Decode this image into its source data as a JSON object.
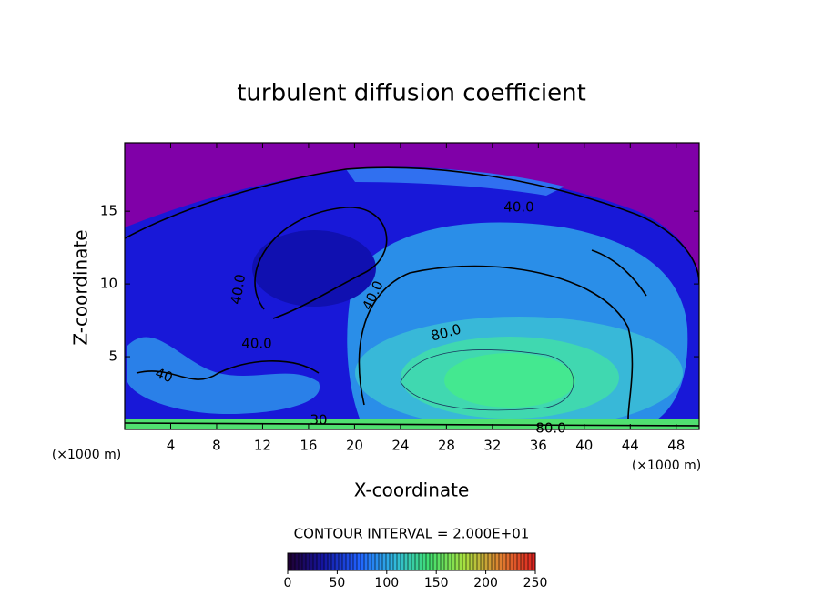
{
  "chart_data": {
    "type": "contour",
    "title": "turbulent diffusion coefficient",
    "x_label": "X-coordinate",
    "y_label": "Z-coordinate",
    "x_unit": "(×1000 m)",
    "y_unit": "(×1000 m)",
    "xlim": [
      0,
      50
    ],
    "ylim": [
      0,
      19.7
    ],
    "xticks": [
      4,
      8,
      12,
      16,
      20,
      24,
      28,
      32,
      36,
      40,
      44,
      48
    ],
    "yticks": [
      5,
      10,
      15
    ],
    "contour_interval_label": "CONTOUR INTERVAL = 2.000E+01",
    "contour_labels": [
      {
        "value": 40,
        "label": "40.0"
      },
      {
        "value": 40,
        "label": "40.0"
      },
      {
        "value": 40,
        "label": "40.0"
      },
      {
        "value": 40,
        "label": "40.0"
      },
      {
        "value": 80,
        "label": "80.0"
      },
      {
        "value": 80,
        "label": "80.0"
      },
      {
        "value": 40,
        "label": "40"
      },
      {
        "value": 30,
        "label": "30"
      }
    ],
    "background_color": "#8000a8",
    "colorbar": {
      "lim": [
        0,
        250
      ],
      "ticks": [
        0,
        50,
        100,
        150,
        200,
        250
      ],
      "colors": [
        "#200030",
        "#1414a0",
        "#2060ff",
        "#30b8e0",
        "#40e070",
        "#a8e040",
        "#e08030",
        "#e02020"
      ]
    }
  }
}
